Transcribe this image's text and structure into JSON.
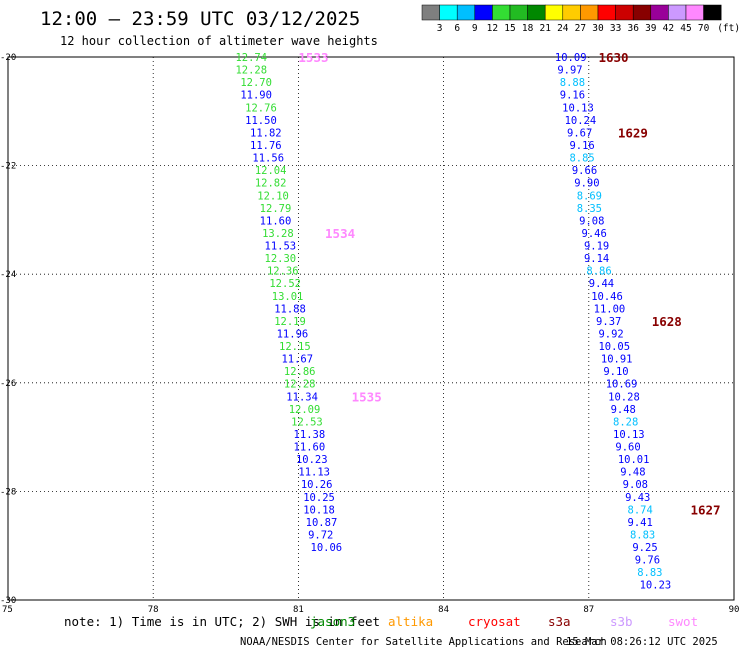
{
  "header": {
    "title": "12:00 — 23:59 UTC 03/12/2025",
    "subtitle": "12 hour collection of altimeter wave heights"
  },
  "colorbar": {
    "levels": [
      "3",
      "6",
      "9",
      "12",
      "15",
      "18",
      "21",
      "24",
      "27",
      "30",
      "33",
      "36",
      "39",
      "42",
      "45",
      "70"
    ],
    "unit": "(ft)",
    "colors": [
      "#7f7f7f",
      "#00ffff",
      "#00bfff",
      "#0000ff",
      "#33dd33",
      "#22bb22",
      "#008800",
      "#ffff00",
      "#ffcc00",
      "#ff9900",
      "#ff0000",
      "#cc0000",
      "#880000",
      "#990099",
      "#cc99ff",
      "#ff88ff",
      "#000000"
    ]
  },
  "footer": {
    "note": "note: 1) Time is in UTC; 2) SWH is in feet",
    "satellites": [
      {
        "name": "jason3",
        "color": "#008800"
      },
      {
        "name": "altika",
        "color": "#ff9900"
      },
      {
        "name": "cryosat",
        "color": "#ff0000"
      },
      {
        "name": "s3a",
        "color": "#880000"
      },
      {
        "name": "s3b",
        "color": "#cc99ff"
      },
      {
        "name": "swot",
        "color": "#ff88ff"
      }
    ],
    "credit": "NOAA/NESDIS Center for Satellite Applications and Research",
    "timestamp": "15 Mar 08:26:12 UTC 2025"
  },
  "chart_data": {
    "type": "scatter",
    "xlim": [
      75,
      90
    ],
    "ylim": [
      -30,
      -20
    ],
    "x_ticks": [
      "75",
      "78",
      "81",
      "84",
      "87",
      "90"
    ],
    "y_ticks": [
      "-20",
      "-22",
      "-24",
      "-26",
      "-28",
      "-30"
    ],
    "grid": true,
    "value_colors": [
      {
        "max": 9,
        "color": "#00bfff"
      },
      {
        "max": 12,
        "color": "#0000ff"
      },
      {
        "max": 15,
        "color": "#33dd33"
      }
    ],
    "tracks": [
      {
        "name": "west track",
        "points": [
          {
            "lon": 79.7,
            "lat": -20.0,
            "swh": 12.74
          },
          {
            "lon": 79.7,
            "lat": -20.23,
            "swh": 12.28
          },
          {
            "lon": 79.8,
            "lat": -20.46,
            "swh": 12.7
          },
          {
            "lon": 79.8,
            "lat": -20.69,
            "swh": 11.9
          },
          {
            "lon": 79.9,
            "lat": -20.93,
            "swh": 12.76
          },
          {
            "lon": 79.9,
            "lat": -21.16,
            "swh": 11.5
          },
          {
            "lon": 80.0,
            "lat": -21.39,
            "swh": 11.82
          },
          {
            "lon": 80.0,
            "lat": -21.62,
            "swh": 11.76
          },
          {
            "lon": 80.05,
            "lat": -21.85,
            "swh": 11.56
          },
          {
            "lon": 80.1,
            "lat": -22.08,
            "swh": 12.04
          },
          {
            "lon": 80.1,
            "lat": -22.31,
            "swh": 12.82
          },
          {
            "lon": 80.15,
            "lat": -22.55,
            "swh": 12.1
          },
          {
            "lon": 80.2,
            "lat": -22.78,
            "swh": 12.79
          },
          {
            "lon": 80.2,
            "lat": -23.01,
            "swh": 11.6
          },
          {
            "lon": 80.25,
            "lat": -23.24,
            "swh": 13.28
          },
          {
            "lon": 80.3,
            "lat": -23.47,
            "swh": 11.53
          },
          {
            "lon": 80.3,
            "lat": -23.7,
            "swh": 12.3
          },
          {
            "lon": 80.35,
            "lat": -23.93,
            "swh": 12.36
          },
          {
            "lon": 80.4,
            "lat": -24.16,
            "swh": 12.52
          },
          {
            "lon": 80.45,
            "lat": -24.4,
            "swh": 13.01
          },
          {
            "lon": 80.5,
            "lat": -24.63,
            "swh": 11.88
          },
          {
            "lon": 80.5,
            "lat": -24.86,
            "swh": 12.19
          },
          {
            "lon": 80.55,
            "lat": -25.09,
            "swh": 11.96
          },
          {
            "lon": 80.6,
            "lat": -25.32,
            "swh": 12.15
          },
          {
            "lon": 80.65,
            "lat": -25.55,
            "swh": 11.67
          },
          {
            "lon": 80.7,
            "lat": -25.78,
            "swh": 12.86
          },
          {
            "lon": 80.7,
            "lat": -26.01,
            "swh": 12.28
          },
          {
            "lon": 80.75,
            "lat": -26.25,
            "swh": 11.34
          },
          {
            "lon": 80.8,
            "lat": -26.48,
            "swh": 12.09
          },
          {
            "lon": 80.85,
            "lat": -26.71,
            "swh": 12.53
          },
          {
            "lon": 80.9,
            "lat": -26.94,
            "swh": 11.38
          },
          {
            "lon": 80.9,
            "lat": -27.17,
            "swh": 11.6
          },
          {
            "lon": 80.95,
            "lat": -27.4,
            "swh": 10.23
          },
          {
            "lon": 81.0,
            "lat": -27.63,
            "swh": 11.13
          },
          {
            "lon": 81.05,
            "lat": -27.86,
            "swh": 10.26
          },
          {
            "lon": 81.1,
            "lat": -28.1,
            "swh": 10.25
          },
          {
            "lon": 81.1,
            "lat": -28.33,
            "swh": 10.18
          },
          {
            "lon": 81.15,
            "lat": -28.56,
            "swh": 10.87
          },
          {
            "lon": 81.2,
            "lat": -28.79,
            "swh": 9.72
          },
          {
            "lon": 81.25,
            "lat": -29.02,
            "swh": 10.06
          }
        ],
        "pass_labels": [
          {
            "text": "1533",
            "lon": 81.0,
            "lat": -20.0,
            "color": "#ff88ff"
          },
          {
            "text": "1534",
            "lon": 81.55,
            "lat": -23.24,
            "color": "#ff88ff"
          },
          {
            "text": "1535",
            "lon": 82.1,
            "lat": -26.25,
            "color": "#ff88ff"
          }
        ]
      },
      {
        "name": "east track",
        "points": [
          {
            "lon": 86.3,
            "lat": -20.0,
            "swh": 10.09
          },
          {
            "lon": 86.35,
            "lat": -20.23,
            "swh": 9.97
          },
          {
            "lon": 86.4,
            "lat": -20.46,
            "swh": 8.88
          },
          {
            "lon": 86.4,
            "lat": -20.69,
            "swh": 9.16
          },
          {
            "lon": 86.45,
            "lat": -20.93,
            "swh": 10.13
          },
          {
            "lon": 86.5,
            "lat": -21.16,
            "swh": 10.24
          },
          {
            "lon": 86.55,
            "lat": -21.39,
            "swh": 9.67
          },
          {
            "lon": 86.6,
            "lat": -21.62,
            "swh": 9.16
          },
          {
            "lon": 86.6,
            "lat": -21.85,
            "swh": 8.85
          },
          {
            "lon": 86.65,
            "lat": -22.08,
            "swh": 9.66
          },
          {
            "lon": 86.7,
            "lat": -22.31,
            "swh": 9.9
          },
          {
            "lon": 86.75,
            "lat": -22.55,
            "swh": 8.69
          },
          {
            "lon": 86.75,
            "lat": -22.78,
            "swh": 8.35
          },
          {
            "lon": 86.8,
            "lat": -23.01,
            "swh": 9.08
          },
          {
            "lon": 86.85,
            "lat": -23.24,
            "swh": 9.46
          },
          {
            "lon": 86.9,
            "lat": -23.47,
            "swh": 9.19
          },
          {
            "lon": 86.9,
            "lat": -23.7,
            "swh": 9.14
          },
          {
            "lon": 86.95,
            "lat": -23.93,
            "swh": 8.86
          },
          {
            "lon": 87.0,
            "lat": -24.16,
            "swh": 9.44
          },
          {
            "lon": 87.05,
            "lat": -24.4,
            "swh": 10.46
          },
          {
            "lon": 87.1,
            "lat": -24.63,
            "swh": 11.0
          },
          {
            "lon": 87.15,
            "lat": -24.86,
            "swh": 9.37
          },
          {
            "lon": 87.2,
            "lat": -25.09,
            "swh": 9.92
          },
          {
            "lon": 87.2,
            "lat": -25.32,
            "swh": 10.05
          },
          {
            "lon": 87.25,
            "lat": -25.55,
            "swh": 10.91
          },
          {
            "lon": 87.3,
            "lat": -25.78,
            "swh": 9.1
          },
          {
            "lon": 87.35,
            "lat": -26.01,
            "swh": 10.69
          },
          {
            "lon": 87.4,
            "lat": -26.25,
            "swh": 10.28
          },
          {
            "lon": 87.45,
            "lat": -26.48,
            "swh": 9.48
          },
          {
            "lon": 87.5,
            "lat": -26.71,
            "swh": 8.28
          },
          {
            "lon": 87.5,
            "lat": -26.94,
            "swh": 10.13
          },
          {
            "lon": 87.55,
            "lat": -27.17,
            "swh": 9.6
          },
          {
            "lon": 87.6,
            "lat": -27.4,
            "swh": 10.01
          },
          {
            "lon": 87.65,
            "lat": -27.63,
            "swh": 9.48
          },
          {
            "lon": 87.7,
            "lat": -27.86,
            "swh": 9.08
          },
          {
            "lon": 87.75,
            "lat": -28.1,
            "swh": 9.43
          },
          {
            "lon": 87.8,
            "lat": -28.33,
            "swh": 8.74
          },
          {
            "lon": 87.8,
            "lat": -28.56,
            "swh": 9.41
          },
          {
            "lon": 87.85,
            "lat": -28.79,
            "swh": 8.83
          },
          {
            "lon": 87.9,
            "lat": -29.02,
            "swh": 9.25
          },
          {
            "lon": 87.95,
            "lat": -29.25,
            "swh": 9.76
          },
          {
            "lon": 88.0,
            "lat": -29.48,
            "swh": 8.83
          },
          {
            "lon": 88.05,
            "lat": -29.71,
            "swh": 10.23
          }
        ],
        "pass_labels": [
          {
            "text": "1630",
            "lon": 87.2,
            "lat": -20.0,
            "color": "#880000"
          },
          {
            "text": "1629",
            "lon": 87.6,
            "lat": -21.39,
            "color": "#880000"
          },
          {
            "text": "1628",
            "lon": 88.3,
            "lat": -24.86,
            "color": "#880000"
          },
          {
            "text": "1627",
            "lon": 89.1,
            "lat": -28.33,
            "color": "#880000"
          }
        ]
      }
    ]
  }
}
